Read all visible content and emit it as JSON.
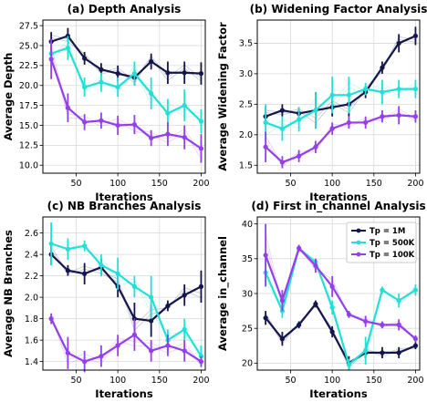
{
  "chart_data": [
    {
      "type": "line",
      "title": "(a) Depth Analysis",
      "xlabel": "Iterations",
      "ylabel": "Average Depth",
      "xlim": [
        10,
        205
      ],
      "ylim": [
        9,
        28.2
      ],
      "xticks": [
        50,
        100,
        150,
        200
      ],
      "yticks": [
        10.0,
        12.5,
        15.0,
        17.5,
        20.0,
        22.5,
        25.0,
        27.5
      ],
      "ytick_labels": [
        "10.0",
        "12.5",
        "15.0",
        "17.5",
        "20.0",
        "22.5",
        "25.0",
        "27.5"
      ],
      "x": [
        20,
        40,
        60,
        80,
        100,
        120,
        140,
        160,
        180,
        200
      ],
      "series": [
        {
          "name": "Tp = 1M",
          "color": "#14164a",
          "values": [
            25.5,
            26.2,
            23.4,
            22.0,
            21.5,
            21.0,
            23.0,
            21.6,
            21.6,
            21.5
          ],
          "errors": [
            1.2,
            1.0,
            0.8,
            0.8,
            1.0,
            1.0,
            1.0,
            1.4,
            1.4,
            1.4
          ]
        },
        {
          "name": "Tp = 500K",
          "color": "#22e0d6",
          "values": [
            24.0,
            24.7,
            19.8,
            20.4,
            19.8,
            21.5,
            19.0,
            16.5,
            17.5,
            15.5
          ],
          "errors": [
            1.5,
            1.5,
            1.2,
            1.2,
            1.2,
            1.5,
            2.0,
            1.8,
            2.0,
            1.5
          ]
        },
        {
          "name": "Tp = 100K",
          "color": "#9340e8",
          "values": [
            23.3,
            17.2,
            15.4,
            15.6,
            15.0,
            15.1,
            13.4,
            13.9,
            13.5,
            12.1
          ],
          "errors": [
            2.5,
            1.8,
            1.0,
            1.0,
            1.2,
            1.2,
            1.0,
            1.5,
            1.5,
            1.8
          ]
        }
      ]
    },
    {
      "type": "line",
      "title": "(b) Widening Factor Analysis",
      "xlabel": "Iterations",
      "ylabel": "Average Widening Factor",
      "xlim": [
        10,
        205
      ],
      "ylim": [
        1.37,
        3.88
      ],
      "xticks": [
        50,
        100,
        150,
        200
      ],
      "yticks": [
        1.5,
        2.0,
        2.5,
        3.0,
        3.5
      ],
      "ytick_labels": [
        "1.5",
        "2.0",
        "2.5",
        "3.0",
        "3.5"
      ],
      "x": [
        20,
        40,
        60,
        80,
        100,
        120,
        140,
        160,
        180,
        200
      ],
      "series": [
        {
          "name": "Tp = 1M",
          "color": "#14164a",
          "values": [
            2.3,
            2.4,
            2.35,
            2.4,
            2.45,
            2.5,
            2.7,
            3.1,
            3.5,
            3.62
          ],
          "errors": [
            0.15,
            0.1,
            0.1,
            0.3,
            0.15,
            0.2,
            0.1,
            0.1,
            0.15,
            0.15
          ]
        },
        {
          "name": "Tp = 500K",
          "color": "#22e0d6",
          "values": [
            2.2,
            2.1,
            2.25,
            2.4,
            2.65,
            2.65,
            2.75,
            2.7,
            2.75,
            2.75
          ],
          "errors": [
            0.3,
            0.2,
            0.2,
            0.3,
            0.3,
            0.3,
            0.1,
            0.2,
            0.15,
            0.15
          ]
        },
        {
          "name": "Tp = 100K",
          "color": "#9340e8",
          "values": [
            1.8,
            1.55,
            1.65,
            1.8,
            2.1,
            2.2,
            2.2,
            2.3,
            2.32,
            2.3
          ],
          "errors": [
            0.25,
            0.1,
            0.1,
            0.1,
            0.1,
            0.1,
            0.1,
            0.1,
            0.15,
            0.1
          ]
        }
      ]
    },
    {
      "type": "line",
      "title": "(c) NB Branches Analysis",
      "xlabel": "Iterations",
      "ylabel": "Average NB Branches",
      "xlim": [
        10,
        205
      ],
      "ylim": [
        1.32,
        2.75
      ],
      "xticks": [
        50,
        100,
        150,
        200
      ],
      "yticks": [
        1.4,
        1.6,
        1.8,
        2.0,
        2.2,
        2.4,
        2.6
      ],
      "ytick_labels": [
        "1.4",
        "1.6",
        "1.8",
        "2.0",
        "2.2",
        "2.4",
        "2.6"
      ],
      "x": [
        20,
        40,
        60,
        80,
        100,
        120,
        140,
        160,
        180,
        200
      ],
      "series": [
        {
          "name": "Tp = 1M",
          "color": "#14164a",
          "values": [
            2.4,
            2.25,
            2.22,
            2.28,
            2.1,
            1.8,
            1.78,
            1.92,
            2.02,
            2.1
          ],
          "errors": [
            0.1,
            0.05,
            0.1,
            0.08,
            0.1,
            0.15,
            0.15,
            0.05,
            0.1,
            0.15
          ]
        },
        {
          "name": "Tp = 500K",
          "color": "#22e0d6",
          "values": [
            2.5,
            2.45,
            2.48,
            2.3,
            2.22,
            2.1,
            2.0,
            1.6,
            1.7,
            1.45
          ],
          "errors": [
            0.2,
            0.1,
            0.05,
            0.1,
            0.15,
            0.1,
            0.2,
            0.1,
            0.1,
            0.1
          ]
        },
        {
          "name": "Tp = 100K",
          "color": "#9340e8",
          "values": [
            1.8,
            1.48,
            1.4,
            1.45,
            1.55,
            1.65,
            1.5,
            1.55,
            1.5,
            1.4
          ],
          "errors": [
            0.05,
            0.15,
            0.1,
            0.1,
            0.1,
            0.15,
            0.1,
            0.1,
            0.1,
            0.05
          ]
        }
      ]
    },
    {
      "type": "line",
      "title": "(d) First in_channel Analysis",
      "xlabel": "Iterations",
      "ylabel": "Average in_channel",
      "xlim": [
        10,
        205
      ],
      "ylim": [
        19,
        41
      ],
      "xticks": [
        50,
        100,
        150,
        200
      ],
      "yticks": [
        20,
        25,
        30,
        35,
        40
      ],
      "ytick_labels": [
        "20",
        "25",
        "30",
        "35",
        "40"
      ],
      "x": [
        20,
        40,
        60,
        80,
        100,
        120,
        140,
        160,
        180,
        200
      ],
      "legend": {
        "position": "top-right",
        "entries": [
          "Tp = 1M",
          "Tp = 500K",
          "Tp = 100K"
        ]
      },
      "series": [
        {
          "name": "Tp = 1M",
          "color": "#14164a",
          "values": [
            26.5,
            23.5,
            25.5,
            28.5,
            24.5,
            20.0,
            21.5,
            21.5,
            21.5,
            22.5
          ],
          "errors": [
            1.0,
            1.0,
            0.5,
            0.5,
            0.8,
            1.0,
            0.8,
            0.8,
            0.8,
            0.5
          ]
        },
        {
          "name": "Tp = 500K",
          "color": "#22e0d6",
          "values": [
            33.0,
            27.5,
            36.5,
            34.5,
            28.0,
            19.8,
            21.8,
            30.5,
            29.0,
            30.5
          ],
          "errors": [
            2.0,
            1.0,
            0.5,
            0.5,
            1.0,
            0.8,
            2.0,
            0.5,
            1.0,
            0.8
          ]
        },
        {
          "name": "Tp = 100K",
          "color": "#9340e8",
          "values": [
            35.5,
            29.0,
            36.5,
            34.0,
            31.0,
            27.0,
            26.0,
            25.5,
            25.5,
            23.5
          ],
          "errors": [
            4.5,
            1.5,
            0.5,
            1.0,
            1.5,
            0.5,
            0.8,
            0.5,
            0.8,
            0.5
          ]
        }
      ]
    }
  ]
}
